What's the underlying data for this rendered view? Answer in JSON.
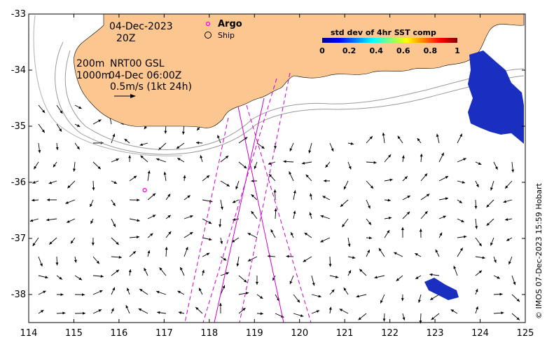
{
  "map": {
    "date": "04-Dec-2023",
    "time": "20Z",
    "legend_argo": "Argo",
    "legend_ship": "Ship",
    "depth_line_1": "200m",
    "depth_line_2": "1000m",
    "source": "NRT00 GSL",
    "source_time": "04-Dec 06:00Z",
    "scale_label": "0.5m/s (1kt 24h)",
    "colorbar_title": "std dev of 4hr SST comp",
    "colorbar_ticks": [
      "0",
      "0.2",
      "0.4",
      "0.6",
      "0.8",
      "1"
    ],
    "credit": "© IMOS 07-Dec-2023 15:59 Hobart",
    "lon_ticks": [
      "114",
      "115",
      "116",
      "117",
      "118",
      "119",
      "120",
      "121",
      "122",
      "123",
      "124",
      "125"
    ],
    "lat_ticks": [
      "-33",
      "-34",
      "-35",
      "-36",
      "-37",
      "-38"
    ],
    "extent": {
      "lon": [
        114,
        125
      ],
      "lat": [
        -38.5,
        -33
      ]
    },
    "land_color": "#fbc690",
    "argo_color": "#ff00ff",
    "track_color": "#cc00cc",
    "argo_float": {
      "lon": 116.57,
      "lat": -36.14
    }
  }
}
